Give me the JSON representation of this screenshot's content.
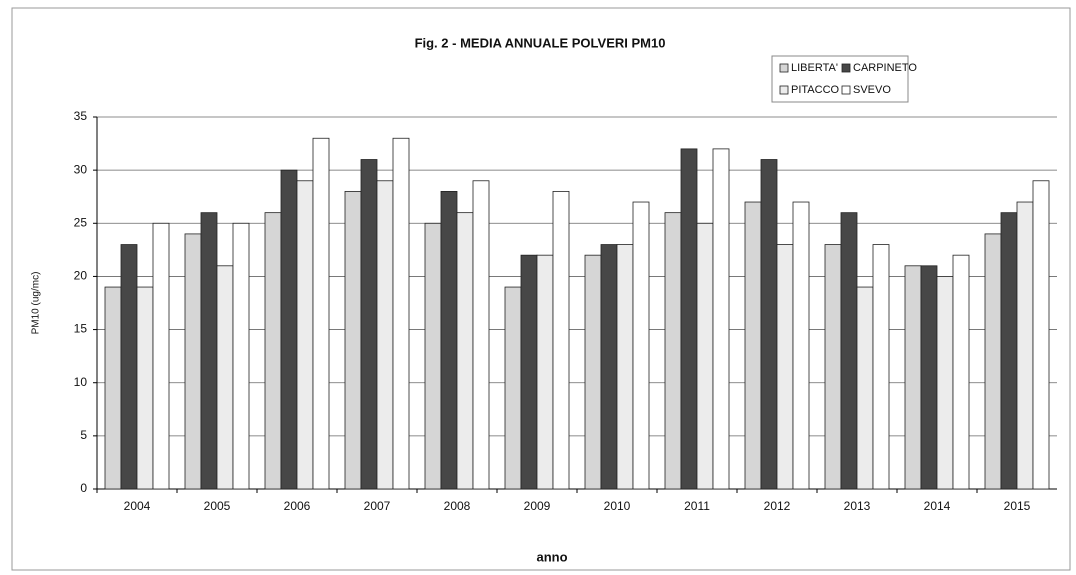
{
  "chart_data": {
    "type": "bar",
    "title": "Fig. 2 - MEDIA ANNUALE POLVERI PM10",
    "x_label": "anno",
    "y_label": "PM10 (ug/mc)",
    "categories": [
      "2004",
      "2005",
      "2006",
      "2007",
      "2008",
      "2009",
      "2010",
      "2011",
      "2012",
      "2013",
      "2014",
      "2015"
    ],
    "series": [
      {
        "name": "LIBERTA'",
        "color": "#d6d6d6",
        "values": [
          19,
          24,
          26,
          28,
          25,
          19,
          22,
          26,
          27,
          23,
          21,
          24
        ]
      },
      {
        "name": "CARPINETO",
        "color": "#474747",
        "values": [
          23,
          26,
          30,
          31,
          28,
          22,
          23,
          32,
          31,
          26,
          21,
          26
        ]
      },
      {
        "name": "PITACCO",
        "color": "#ececec",
        "values": [
          19,
          21,
          29,
          29,
          26,
          22,
          23,
          25,
          23,
          19,
          20,
          27
        ]
      },
      {
        "name": "SVEVO",
        "color": "#ffffff",
        "values": [
          25,
          25,
          33,
          33,
          29,
          28,
          27,
          32,
          27,
          23,
          22,
          29
        ]
      }
    ],
    "ylim": [
      0,
      35
    ],
    "yticks": [
      0,
      5,
      10,
      15,
      20,
      25,
      30,
      35
    ],
    "grid": true,
    "legend": "upper right"
  }
}
